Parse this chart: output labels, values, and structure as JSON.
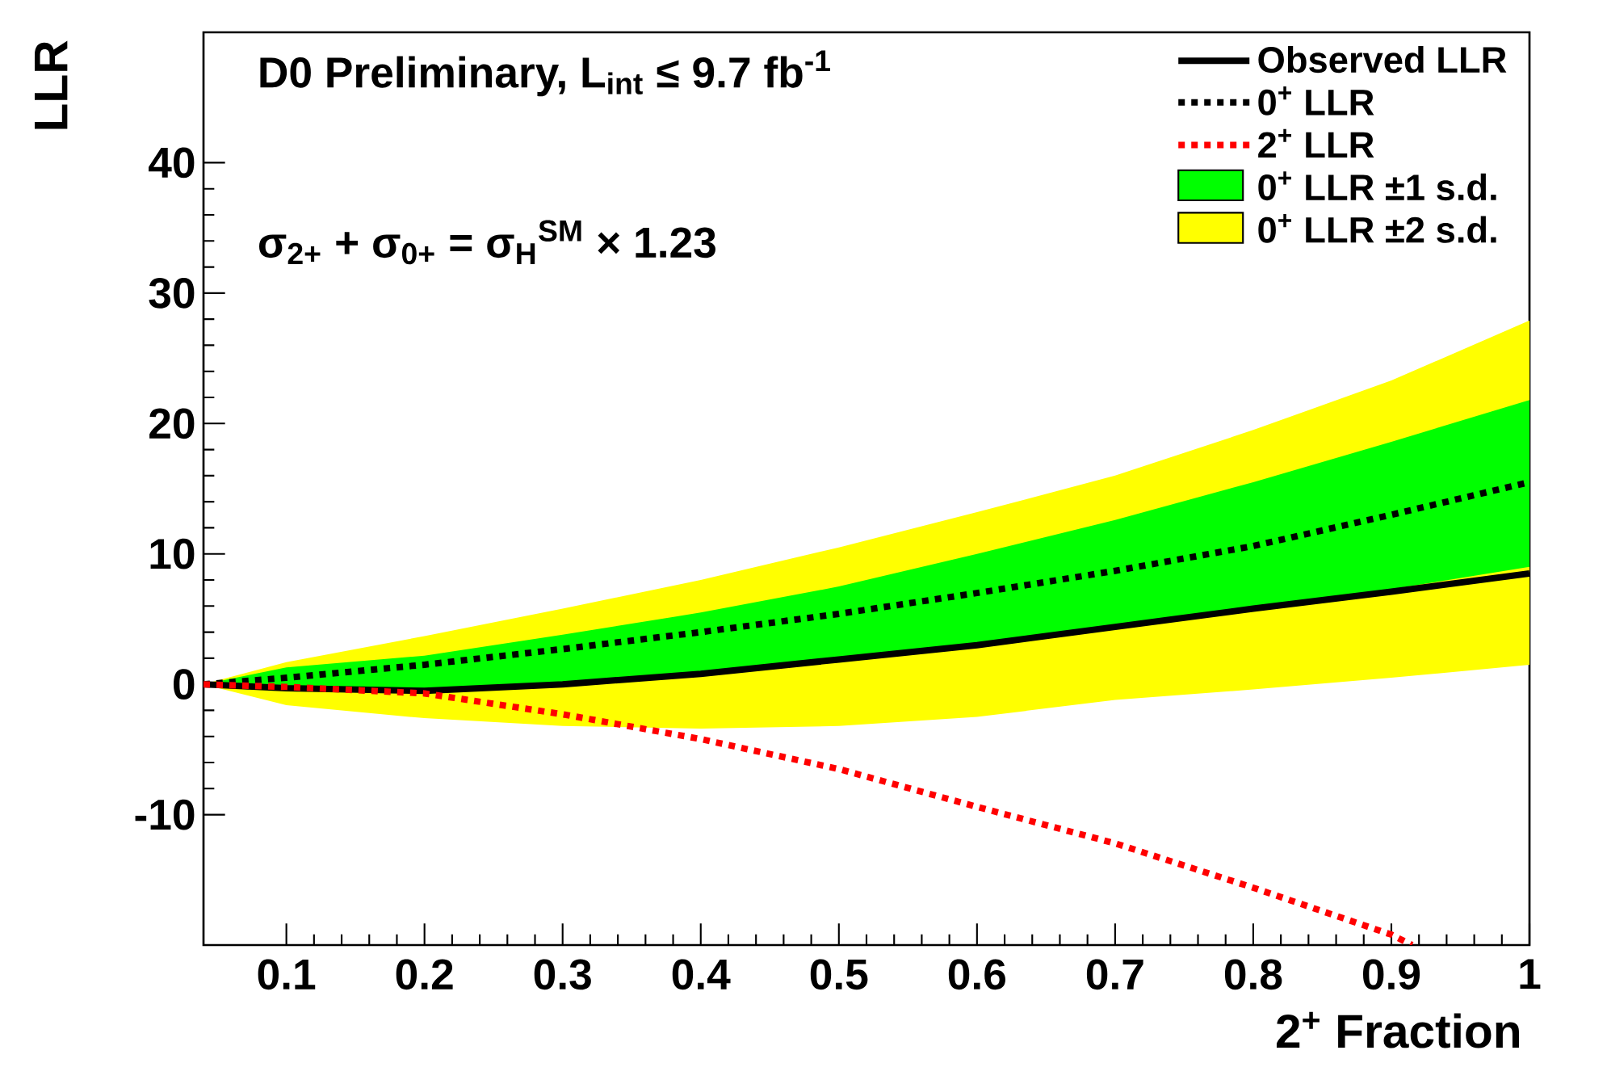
{
  "chart_data": {
    "type": "line",
    "xlabel": "2$^{+}$ Fraction",
    "ylabel": "LLR",
    "annotations": [
      "D0 Preliminary, L$_{int}$ ≤ 9.7 fb$^{-1}$",
      "σ$_{2+}$ + σ$_{0+}$ = σ$_{H}$$^{SM}$ × 1.23"
    ],
    "x": [
      0.04,
      0.1,
      0.2,
      0.3,
      0.4,
      0.5,
      0.6,
      0.7,
      0.8,
      0.9,
      1.0
    ],
    "xlim": [
      0.04,
      1
    ],
    "ylim": [
      -20,
      50
    ],
    "xticks": [
      0.1,
      0.2,
      0.3,
      0.4,
      0.5,
      0.6,
      0.7,
      0.8,
      0.9,
      1
    ],
    "yticks": [
      -10,
      0,
      10,
      20,
      30,
      40
    ],
    "legend": "top right",
    "grid": false,
    "marker": "none",
    "series": [
      {
        "name": "0$^{+}$ LLR ±2 s.d.",
        "type": "area",
        "color": "#ffff00",
        "values": [
          null,
          null,
          null,
          null,
          null,
          null,
          null,
          null,
          null,
          null,
          null
        ],
        "upper": [
          0,
          1.7,
          3.7,
          5.8,
          8.0,
          10.5,
          13.2,
          16.0,
          19.5,
          23.3,
          27.9
        ],
        "lower": [
          0,
          -1.6,
          -2.6,
          -3.2,
          -3.4,
          -3.2,
          -2.5,
          -1.2,
          -0.4,
          0.5,
          1.5
        ]
      },
      {
        "name": "0$^{+}$ LLR ±1 s.d.",
        "type": "area",
        "color": "#00ff00",
        "values": [
          null,
          null,
          null,
          null,
          null,
          null,
          null,
          null,
          null,
          null,
          null
        ],
        "upper": [
          0,
          1.3,
          2.2,
          3.8,
          5.5,
          7.5,
          10.0,
          12.6,
          15.5,
          18.6,
          21.8
        ],
        "lower": [
          0,
          -0.4,
          -0.3,
          0.2,
          0.8,
          1.8,
          3.0,
          4.3,
          5.7,
          7.3,
          9.0
        ]
      },
      {
        "name": "Observed LLR",
        "type": "line",
        "color": "#000000",
        "line_style": "solid",
        "values": [
          0,
          -0.3,
          -0.5,
          0,
          0.8,
          1.9,
          3.0,
          4.4,
          5.8,
          7.1,
          8.5
        ]
      },
      {
        "name": "0$^{+}$ LLR",
        "type": "line",
        "color": "#000000",
        "line_style": "dotted",
        "values": [
          0,
          0.5,
          1.5,
          2.7,
          4.0,
          5.4,
          7.0,
          8.7,
          10.6,
          13.0,
          15.5
        ]
      },
      {
        "name": "2$^{+}$ LLR",
        "type": "line",
        "color": "#ff0000",
        "line_style": "dotted",
        "x": [
          0.04,
          0.1,
          0.2,
          0.3,
          0.4,
          0.5,
          0.6,
          0.7,
          0.8,
          0.9,
          0.915
        ],
        "values": [
          0,
          -0.2,
          -0.7,
          -2.3,
          -4.2,
          -6.5,
          -9.4,
          -12.2,
          -15.6,
          -19.2,
          -20
        ]
      }
    ]
  }
}
